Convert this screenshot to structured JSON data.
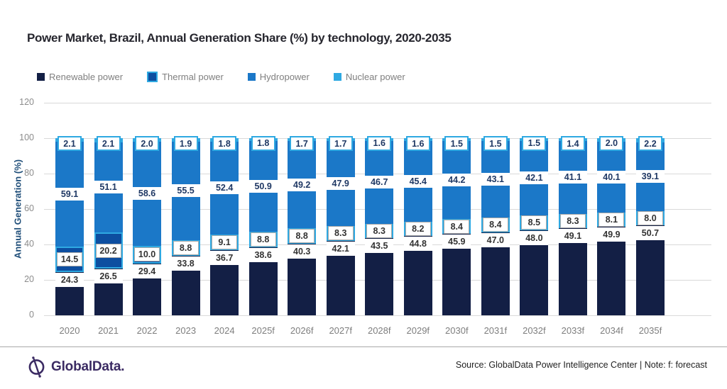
{
  "page": {
    "title": "Power Market, Brazil, Annual Generation Share (%) by technology, 2020-2035",
    "footer": {
      "logo_text": "GlobalData.",
      "logo_icon": "globaldata-compass-icon",
      "source_note": "Source: GlobalData Power Intelligence Center | Note: f: forecast"
    }
  },
  "colors": {
    "renewable": "#131f45",
    "thermal": "#0d4ea0",
    "thermal_border": "#2fa9e2",
    "hydro": "#1b78c8",
    "nuclear": "#2fa9e2",
    "label_navy": "#1f3864",
    "label_dark": "#333333",
    "grid": "#d9d9d9",
    "axis_text": "#8c8c8c",
    "brand_purple": "#3b2b63"
  },
  "chart_data": {
    "type": "bar",
    "stacked": true,
    "title": "Power Market, Brazil, Annual Generation Share (%) by technology, 2020-2035",
    "xlabel": "",
    "ylabel": "Annual Generation (%)",
    "ylim": [
      0,
      120
    ],
    "yticks": [
      0,
      20,
      40,
      60,
      80,
      100,
      120
    ],
    "grid": true,
    "legend_position": "top-left",
    "categories": [
      "2020",
      "2021",
      "2022",
      "2023",
      "2024",
      "2025f",
      "2026f",
      "2027f",
      "2028f",
      "2029f",
      "2030f",
      "2031f",
      "2032f",
      "2033f",
      "2034f",
      "2035f"
    ],
    "series": [
      {
        "name": "Renewable power",
        "values": [
          24.3,
          26.5,
          29.4,
          33.8,
          36.7,
          38.6,
          40.3,
          42.1,
          43.5,
          44.8,
          45.9,
          47.0,
          48.0,
          49.1,
          49.9,
          50.7
        ]
      },
      {
        "name": "Thermal power",
        "values": [
          14.5,
          20.2,
          10.0,
          8.8,
          9.1,
          8.8,
          8.8,
          8.3,
          8.3,
          8.2,
          8.4,
          8.4,
          8.5,
          8.3,
          8.1,
          8.0
        ]
      },
      {
        "name": "Hydropower",
        "values": [
          59.1,
          51.1,
          58.6,
          55.5,
          52.4,
          50.9,
          49.2,
          47.9,
          46.7,
          45.4,
          44.2,
          43.1,
          42.1,
          41.1,
          40.1,
          39.1
        ]
      },
      {
        "name": "Nuclear power",
        "values": [
          2.1,
          2.1,
          2.0,
          1.9,
          1.8,
          1.8,
          1.7,
          1.7,
          1.6,
          1.6,
          1.5,
          1.5,
          1.5,
          1.4,
          2.0,
          2.2
        ]
      }
    ]
  }
}
